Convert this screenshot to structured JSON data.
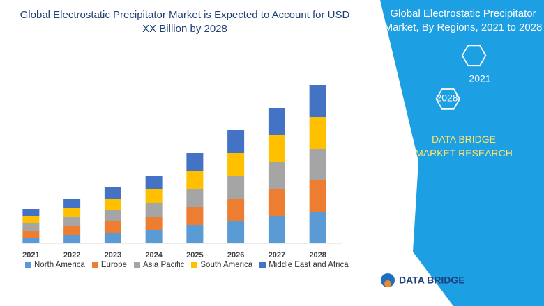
{
  "chart_data": {
    "type": "bar",
    "stacked": true,
    "title": "Global Electrostatic Precipitator Market is Expected to Account for USD XX Billion by 2028",
    "categories": [
      "2021",
      "2022",
      "2023",
      "2024",
      "2025",
      "2026",
      "2027",
      "2028"
    ],
    "series": [
      {
        "name": "North America",
        "color": "#5b9bd5",
        "values": [
          8,
          12,
          15,
          19,
          26,
          32,
          39,
          45
        ]
      },
      {
        "name": "Europe",
        "color": "#ed7d31",
        "values": [
          10,
          13,
          17,
          19,
          26,
          32,
          39,
          46
        ]
      },
      {
        "name": "Asia Pacific",
        "color": "#a5a5a5",
        "values": [
          11,
          13,
          16,
          20,
          26,
          33,
          39,
          45
        ]
      },
      {
        "name": "South America",
        "color": "#ffc000",
        "values": [
          10,
          13,
          16,
          20,
          26,
          33,
          39,
          46
        ]
      },
      {
        "name": "Middle East and Africa",
        "color": "#4472c4",
        "values": [
          10,
          13,
          17,
          19,
          26,
          33,
          39,
          46
        ]
      }
    ]
  },
  "panel": {
    "heading": "Global Electrostatic Precipitator Market, By Regions, 2021 to 2028",
    "badges": [
      "2021",
      "2028"
    ],
    "brand": "DATA BRIDGE MARKET RESEARCH",
    "logo": "DATA BRIDGE"
  }
}
